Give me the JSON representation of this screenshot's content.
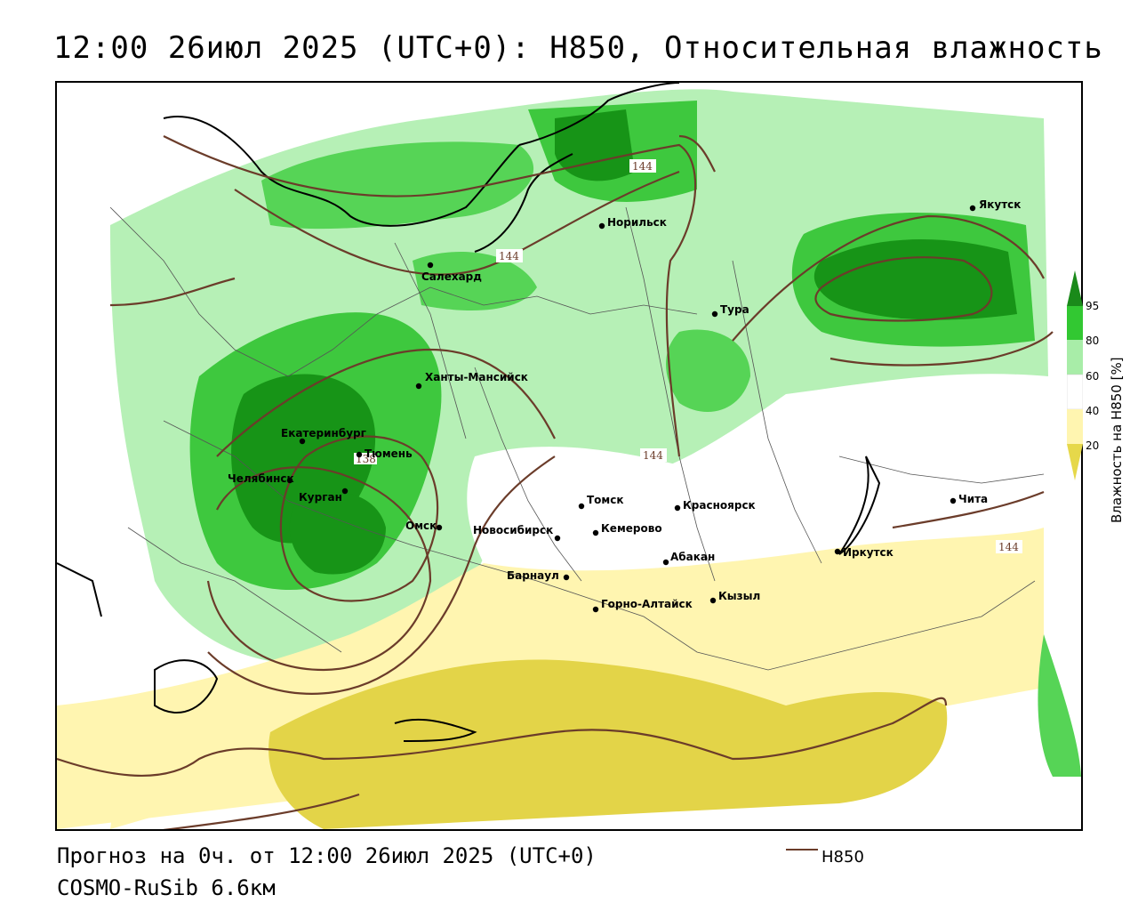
{
  "title": "12:00 26июл 2025 (UTC+0): H850, Относительная влажность",
  "footer": {
    "forecast": "Прогноз на 0ч. от 12:00 26июл 2025 (UTC+0)",
    "model": "COSMO-RuSib 6.6км"
  },
  "legend": {
    "line_label": "H850",
    "line_color": "#6b3c2a"
  },
  "colorbar": {
    "title": "Влажность на H850 [%]",
    "ticks": [
      "95",
      "80",
      "60",
      "40",
      "20"
    ],
    "colors": {
      "c95": "#1a8a1a",
      "c80": "#32c832",
      "c60": "#a8eda8",
      "c40": "#ffffff",
      "c20": "#fff5b0",
      "c0": "#e6d84a"
    }
  },
  "isolines": {
    "label_a": "144",
    "label_b": "144",
    "label_c": "144",
    "label_d": "144",
    "label_e": "138"
  },
  "cities": [
    {
      "name": "Якутск"
    },
    {
      "name": "Норильск"
    },
    {
      "name": "Салехард"
    },
    {
      "name": "Тура"
    },
    {
      "name": "Ханты-Мансийск"
    },
    {
      "name": "Екатеринбург"
    },
    {
      "name": "Тюмень"
    },
    {
      "name": "Челябинск"
    },
    {
      "name": "Курган"
    },
    {
      "name": "Омск"
    },
    {
      "name": "Томск"
    },
    {
      "name": "Красноярск"
    },
    {
      "name": "Новосибирск"
    },
    {
      "name": "Кемерово"
    },
    {
      "name": "Абакан"
    },
    {
      "name": "Барнаул"
    },
    {
      "name": "Горно-Алтайск"
    },
    {
      "name": "Кызыл"
    },
    {
      "name": "Иркутск"
    },
    {
      "name": "Чита"
    }
  ]
}
